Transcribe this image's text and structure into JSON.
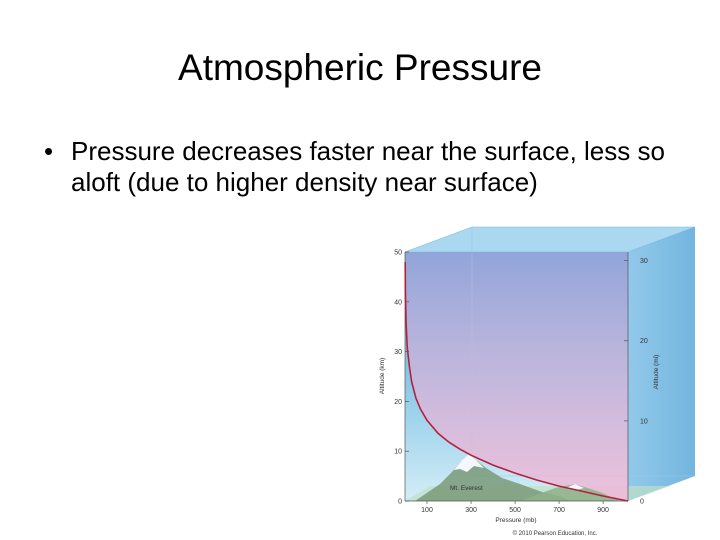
{
  "slide": {
    "title": "Atmospheric Pressure",
    "bullet_marker": "•",
    "bullet": "Pressure decreases faster near the surface, less so aloft (due to higher density near surface)"
  },
  "figure": {
    "left_axis_label": "Altitude (km)",
    "right_axis_label": "Altitude (mi)",
    "bottom_axis_label": "Pressure (mb)",
    "landmark_label": "Mt. Everest",
    "copyright": "© 2010 Pearson Education, Inc.",
    "left_ticks": [
      "50",
      "40",
      "30",
      "20",
      "10",
      "0"
    ],
    "right_ticks": [
      "30",
      "20",
      "10",
      "0"
    ],
    "bottom_ticks": [
      "100",
      "300",
      "500",
      "700",
      "900"
    ],
    "colors": {
      "sky_top": "#4f9fd6",
      "sky_bottom": "#cfeaf5",
      "pressure_fill": "#e7b8d6",
      "pressure_curve": "#b3213c",
      "mountain": "#7a9a78"
    }
  },
  "chart_data": {
    "type": "line",
    "title": "",
    "xlabel": "Pressure (mb)",
    "ylabel": "Altitude (km)",
    "y2label": "Altitude (mi)",
    "xlim": [
      0,
      1013
    ],
    "ylim": [
      0,
      50
    ],
    "x_ticks": [
      100,
      300,
      500,
      700,
      900
    ],
    "y_ticks": [
      0,
      10,
      20,
      30,
      40,
      50
    ],
    "y2_ticks": [
      0,
      10,
      20,
      30
    ],
    "annotations": [
      "Mt. Everest"
    ],
    "series": [
      {
        "x": [
          1013,
          900,
          800,
          700,
          600,
          500,
          400,
          300,
          250,
          200,
          150,
          100,
          70,
          50,
          30,
          20,
          10,
          5,
          2,
          1
        ],
        "y": [
          0,
          1,
          2,
          3,
          4.2,
          5.6,
          7.2,
          9.2,
          10.4,
          11.8,
          13.6,
          16.2,
          18.5,
          20.6,
          24,
          27,
          31,
          35.8,
          42,
          48
        ]
      }
    ]
  }
}
